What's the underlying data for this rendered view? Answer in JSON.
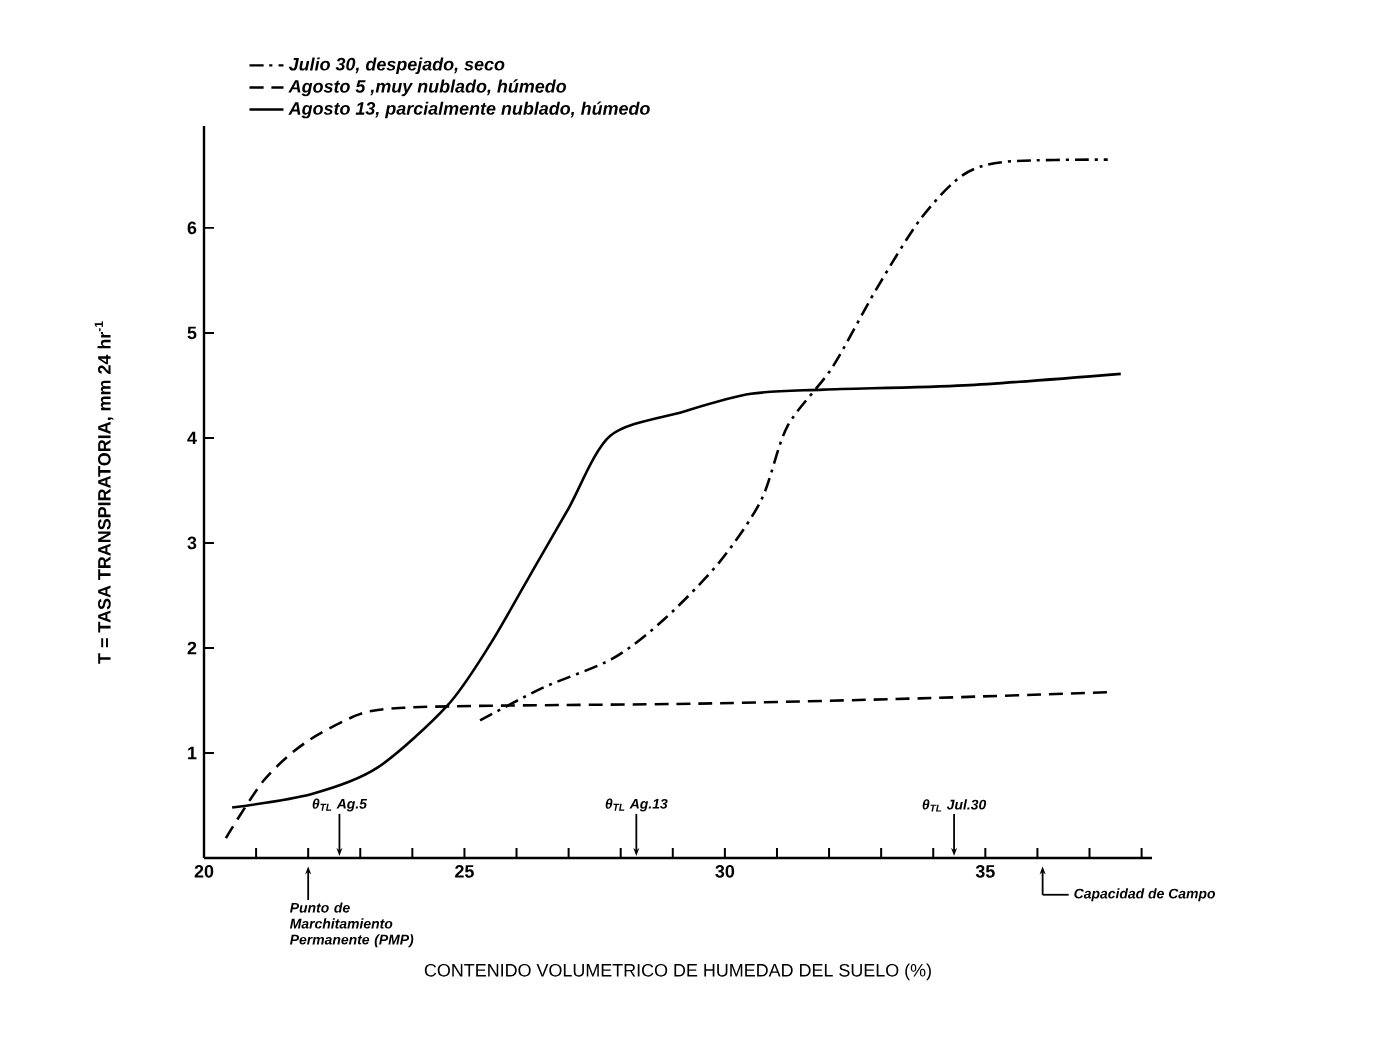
{
  "chart_data": {
    "type": "line",
    "xlabel": "CONTENIDO VOLUMETRICO DE HUMEDAD DEL SUELO (%)",
    "ylabel": "T = TASA TRANSPIRATORIA, mm 24 hr$^{-1}$",
    "xlim": [
      20,
      38.2
    ],
    "ylim": [
      0,
      6.97
    ],
    "xticks": [
      20,
      {
        "value": 21,
        "label": null
      },
      {
        "value": 22,
        "label": null
      },
      {
        "value": 23,
        "label": null
      },
      {
        "value": 24,
        "label": null
      },
      25,
      {
        "value": 26,
        "label": null
      },
      {
        "value": 27,
        "label": null
      },
      {
        "value": 28,
        "label": null
      },
      {
        "value": 29,
        "label": null
      },
      30,
      {
        "value": 31,
        "label": null
      },
      {
        "value": 32,
        "label": null
      },
      {
        "value": 33,
        "label": null
      },
      {
        "value": 34,
        "label": null
      },
      35,
      {
        "value": 36,
        "label": null
      },
      {
        "value": 37,
        "label": null
      },
      {
        "value": 38,
        "label": null
      }
    ],
    "yticks": [
      1,
      2,
      3,
      4,
      5,
      6
    ],
    "grid": false,
    "legend": "top left",
    "marker": "none",
    "series": [
      {
        "name": "Julio 30, despejado, seco",
        "color": "#000000",
        "line_style": "dashdot",
        "x": [
          25.3,
          26.5,
          27.85,
          28.85,
          29.9,
          30.7,
          31.2,
          32.06,
          32.9,
          33.75,
          34.56,
          35.4,
          37.35
        ],
        "values": [
          1.31,
          1.62,
          1.9,
          2.28,
          2.82,
          3.41,
          4.11,
          4.67,
          5.41,
          6.08,
          6.5,
          6.63,
          6.65
        ]
      },
      {
        "name": "Agosto 5 ,muy nublado, húmedo",
        "color": "#000000",
        "line_style": "dashed",
        "x": [
          20.42,
          21.15,
          21.95,
          22.99,
          23.83,
          25.5,
          29.5,
          33.75,
          37.4
        ],
        "values": [
          0.19,
          0.74,
          1.1,
          1.37,
          1.43,
          1.45,
          1.47,
          1.52,
          1.58
        ]
      },
      {
        "name": "Agosto 13, parcialmente nublado, húmedo",
        "color": "#000000",
        "line_style": "solid",
        "x": [
          20.54,
          22.07,
          23.33,
          24.67,
          25.5,
          26.36,
          27.0,
          27.8,
          29.2,
          30.5,
          31.9,
          34.6,
          37.6
        ],
        "values": [
          0.48,
          0.61,
          0.86,
          1.45,
          2.04,
          2.78,
          3.33,
          4.02,
          4.25,
          4.42,
          4.46,
          4.5,
          4.61
        ]
      }
    ],
    "annotations": [
      "θ$_{TL}$ Ag.5",
      "θ$_{TL}$ Ag.13",
      "θ$_{TL}$ Jul.30",
      "Punto de Marchitamiento Permanente (PMP)",
      "Capacidad de Campo"
    ]
  }
}
